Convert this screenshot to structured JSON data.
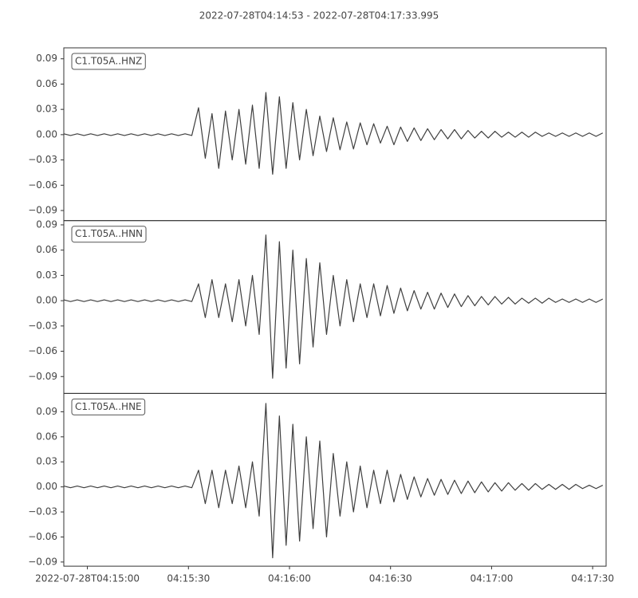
{
  "title": "2022-07-28T04:14:53  -  2022-07-28T04:17:33.995",
  "chart_data": [
    {
      "type": "line",
      "label": "C1.T05A..HNZ",
      "color": "#3f3f3f",
      "xlim": [
        "04:14:53",
        "04:17:33.995"
      ],
      "ylim": [
        -0.102,
        0.103
      ],
      "yticks": [
        {
          "value": -0.09,
          "label": "−0.09"
        },
        {
          "value": -0.06,
          "label": "−0.06"
        },
        {
          "value": -0.03,
          "label": "−0.03"
        },
        {
          "value": 0,
          "label": "0.00"
        },
        0.03,
        0.06,
        0.09
      ],
      "x": [
        "04:14:53",
        "04:14:55",
        "04:14:57",
        "04:14:59",
        "04:15:01",
        "04:15:03",
        "04:15:05",
        "04:15:07",
        "04:15:09",
        "04:15:11",
        "04:15:13",
        "04:15:15",
        "04:15:17",
        "04:15:19",
        "04:15:21",
        "04:15:23",
        "04:15:25",
        "04:15:27",
        "04:15:29",
        "04:15:31",
        "04:15:33",
        "04:15:35",
        "04:15:37",
        "04:15:39",
        "04:15:41",
        "04:15:43",
        "04:15:45",
        "04:15:47",
        "04:15:49",
        "04:15:51",
        "04:15:53",
        "04:15:55",
        "04:15:57",
        "04:15:59",
        "04:16:01",
        "04:16:03",
        "04:16:05",
        "04:16:07",
        "04:16:09",
        "04:16:11",
        "04:16:13",
        "04:16:15",
        "04:16:17",
        "04:16:19",
        "04:16:21",
        "04:16:23",
        "04:16:25",
        "04:16:27",
        "04:16:29",
        "04:16:31",
        "04:16:33",
        "04:16:35",
        "04:16:37",
        "04:16:39",
        "04:16:41",
        "04:16:43",
        "04:16:45",
        "04:16:47",
        "04:16:49",
        "04:16:51",
        "04:16:53",
        "04:16:55",
        "04:16:57",
        "04:16:59",
        "04:17:01",
        "04:17:03",
        "04:17:05",
        "04:17:07",
        "04:17:09",
        "04:17:11",
        "04:17:13",
        "04:17:15",
        "04:17:17",
        "04:17:19",
        "04:17:21",
        "04:17:23",
        "04:17:25",
        "04:17:27",
        "04:17:29",
        "04:17:31",
        "04:17:33"
      ],
      "values": [
        0.001,
        -0.001,
        0.001,
        -0.001,
        0.001,
        -0.001,
        0.001,
        -0.001,
        0.001,
        -0.001,
        0.001,
        -0.001,
        0.001,
        -0.001,
        0.001,
        -0.001,
        0.001,
        -0.001,
        0.001,
        -0.001,
        0.032,
        -0.028,
        0.025,
        -0.04,
        0.028,
        -0.03,
        0.03,
        -0.035,
        0.035,
        -0.04,
        0.05,
        -0.047,
        0.045,
        -0.04,
        0.038,
        -0.03,
        0.03,
        -0.025,
        0.022,
        -0.02,
        0.02,
        -0.018,
        0.015,
        -0.017,
        0.014,
        -0.012,
        0.013,
        -0.01,
        0.01,
        -0.012,
        0.009,
        -0.008,
        0.008,
        -0.007,
        0.007,
        -0.006,
        0.006,
        -0.005,
        0.006,
        -0.005,
        0.005,
        -0.004,
        0.004,
        -0.004,
        0.004,
        -0.003,
        0.003,
        -0.003,
        0.003,
        -0.003,
        0.003,
        -0.002,
        0.002,
        -0.002,
        0.002,
        -0.002,
        0.002,
        -0.002,
        0.002,
        -0.002,
        0.002
      ]
    },
    {
      "type": "line",
      "label": "C1.T05A..HNN",
      "color": "#3f3f3f",
      "xlim": [
        "04:14:53",
        "04:17:33.995"
      ],
      "ylim": [
        -0.11,
        0.095
      ],
      "yticks": [
        {
          "value": -0.09,
          "label": "−0.09"
        },
        {
          "value": -0.06,
          "label": "−0.06"
        },
        {
          "value": -0.03,
          "label": "−0.03"
        },
        {
          "value": 0,
          "label": "0.00"
        },
        0.03,
        0.06,
        0.09
      ],
      "x": [
        "04:14:53",
        "04:14:55",
        "04:14:57",
        "04:14:59",
        "04:15:01",
        "04:15:03",
        "04:15:05",
        "04:15:07",
        "04:15:09",
        "04:15:11",
        "04:15:13",
        "04:15:15",
        "04:15:17",
        "04:15:19",
        "04:15:21",
        "04:15:23",
        "04:15:25",
        "04:15:27",
        "04:15:29",
        "04:15:31",
        "04:15:33",
        "04:15:35",
        "04:15:37",
        "04:15:39",
        "04:15:41",
        "04:15:43",
        "04:15:45",
        "04:15:47",
        "04:15:49",
        "04:15:51",
        "04:15:53",
        "04:15:55",
        "04:15:57",
        "04:15:59",
        "04:16:01",
        "04:16:03",
        "04:16:05",
        "04:16:07",
        "04:16:09",
        "04:16:11",
        "04:16:13",
        "04:16:15",
        "04:16:17",
        "04:16:19",
        "04:16:21",
        "04:16:23",
        "04:16:25",
        "04:16:27",
        "04:16:29",
        "04:16:31",
        "04:16:33",
        "04:16:35",
        "04:16:37",
        "04:16:39",
        "04:16:41",
        "04:16:43",
        "04:16:45",
        "04:16:47",
        "04:16:49",
        "04:16:51",
        "04:16:53",
        "04:16:55",
        "04:16:57",
        "04:16:59",
        "04:17:01",
        "04:17:03",
        "04:17:05",
        "04:17:07",
        "04:17:09",
        "04:17:11",
        "04:17:13",
        "04:17:15",
        "04:17:17",
        "04:17:19",
        "04:17:21",
        "04:17:23",
        "04:17:25",
        "04:17:27",
        "04:17:29",
        "04:17:31",
        "04:17:33"
      ],
      "values": [
        0.001,
        -0.001,
        0.001,
        -0.001,
        0.001,
        -0.001,
        0.001,
        -0.001,
        0.001,
        -0.001,
        0.001,
        -0.001,
        0.001,
        -0.001,
        0.001,
        -0.001,
        0.001,
        -0.001,
        0.001,
        -0.001,
        0.02,
        -0.02,
        0.025,
        -0.02,
        0.02,
        -0.025,
        0.025,
        -0.03,
        0.03,
        -0.04,
        0.078,
        -0.092,
        0.07,
        -0.08,
        0.06,
        -0.075,
        0.05,
        -0.055,
        0.045,
        -0.04,
        0.03,
        -0.03,
        0.025,
        -0.025,
        0.02,
        -0.02,
        0.02,
        -0.018,
        0.018,
        -0.015,
        0.015,
        -0.012,
        0.012,
        -0.01,
        0.01,
        -0.01,
        0.009,
        -0.008,
        0.008,
        -0.007,
        0.006,
        -0.006,
        0.005,
        -0.005,
        0.005,
        -0.004,
        0.004,
        -0.004,
        0.003,
        -0.003,
        0.003,
        -0.003,
        0.003,
        -0.002,
        0.002,
        -0.002,
        0.002,
        -0.002,
        0.002,
        -0.002,
        0.002
      ]
    },
    {
      "type": "line",
      "label": "C1.T05A..HNE",
      "color": "#3f3f3f",
      "xlim": [
        "04:14:53",
        "04:17:33.995"
      ],
      "ylim": [
        -0.095,
        0.112
      ],
      "yticks": [
        {
          "value": -0.09,
          "label": "−0.09"
        },
        {
          "value": -0.06,
          "label": "−0.06"
        },
        {
          "value": -0.03,
          "label": "−0.03"
        },
        {
          "value": 0,
          "label": "0.00"
        },
        0.03,
        0.06,
        0.09
      ],
      "xticks": [
        {
          "value": "04:15:00",
          "label": "2022-07-28T04:15:00"
        },
        "04:15:30",
        "04:16:00",
        "04:16:30",
        "04:17:00",
        "04:17:30"
      ],
      "x": [
        "04:14:53",
        "04:14:55",
        "04:14:57",
        "04:14:59",
        "04:15:01",
        "04:15:03",
        "04:15:05",
        "04:15:07",
        "04:15:09",
        "04:15:11",
        "04:15:13",
        "04:15:15",
        "04:15:17",
        "04:15:19",
        "04:15:21",
        "04:15:23",
        "04:15:25",
        "04:15:27",
        "04:15:29",
        "04:15:31",
        "04:15:33",
        "04:15:35",
        "04:15:37",
        "04:15:39",
        "04:15:41",
        "04:15:43",
        "04:15:45",
        "04:15:47",
        "04:15:49",
        "04:15:51",
        "04:15:53",
        "04:15:55",
        "04:15:57",
        "04:15:59",
        "04:16:01",
        "04:16:03",
        "04:16:05",
        "04:16:07",
        "04:16:09",
        "04:16:11",
        "04:16:13",
        "04:16:15",
        "04:16:17",
        "04:16:19",
        "04:16:21",
        "04:16:23",
        "04:16:25",
        "04:16:27",
        "04:16:29",
        "04:16:31",
        "04:16:33",
        "04:16:35",
        "04:16:37",
        "04:16:39",
        "04:16:41",
        "04:16:43",
        "04:16:45",
        "04:16:47",
        "04:16:49",
        "04:16:51",
        "04:16:53",
        "04:16:55",
        "04:16:57",
        "04:16:59",
        "04:17:01",
        "04:17:03",
        "04:17:05",
        "04:17:07",
        "04:17:09",
        "04:17:11",
        "04:17:13",
        "04:17:15",
        "04:17:17",
        "04:17:19",
        "04:17:21",
        "04:17:23",
        "04:17:25",
        "04:17:27",
        "04:17:29",
        "04:17:31",
        "04:17:33"
      ],
      "values": [
        0.001,
        -0.001,
        0.001,
        -0.001,
        0.001,
        -0.001,
        0.001,
        -0.001,
        0.001,
        -0.001,
        0.001,
        -0.001,
        0.001,
        -0.001,
        0.001,
        -0.001,
        0.001,
        -0.001,
        0.001,
        -0.001,
        0.02,
        -0.02,
        0.02,
        -0.025,
        0.02,
        -0.02,
        0.025,
        -0.025,
        0.03,
        -0.035,
        0.1,
        -0.085,
        0.085,
        -0.07,
        0.075,
        -0.065,
        0.06,
        -0.05,
        0.055,
        -0.06,
        0.04,
        -0.035,
        0.03,
        -0.03,
        0.025,
        -0.025,
        0.02,
        -0.02,
        0.02,
        -0.018,
        0.015,
        -0.015,
        0.012,
        -0.012,
        0.01,
        -0.01,
        0.009,
        -0.009,
        0.008,
        -0.008,
        0.007,
        -0.007,
        0.006,
        -0.006,
        0.005,
        -0.005,
        0.005,
        -0.004,
        0.004,
        -0.004,
        0.004,
        -0.003,
        0.003,
        -0.003,
        0.003,
        -0.003,
        0.003,
        -0.002,
        0.002,
        -0.002,
        0.002
      ]
    }
  ]
}
